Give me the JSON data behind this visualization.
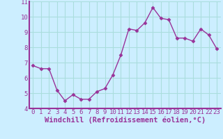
{
  "x": [
    0,
    1,
    2,
    3,
    4,
    5,
    6,
    7,
    8,
    9,
    10,
    11,
    12,
    13,
    14,
    15,
    16,
    17,
    18,
    19,
    20,
    21,
    22,
    23
  ],
  "y": [
    6.8,
    6.6,
    6.6,
    5.2,
    4.5,
    4.9,
    4.6,
    4.6,
    5.1,
    5.3,
    6.2,
    7.5,
    9.2,
    9.1,
    9.6,
    10.6,
    9.9,
    9.8,
    8.6,
    8.6,
    8.4,
    9.2,
    8.8,
    7.9
  ],
  "line_color": "#993399",
  "marker": "D",
  "marker_size": 2.5,
  "bg_color": "#cceeff",
  "grid_color": "#aadddd",
  "xlabel": "Windchill (Refroidissement éolien,°C)",
  "xlim": [
    -0.5,
    23.5
  ],
  "ylim": [
    4,
    11
  ],
  "yticks": [
    4,
    5,
    6,
    7,
    8,
    9,
    10,
    11
  ],
  "xticks": [
    0,
    1,
    2,
    3,
    4,
    5,
    6,
    7,
    8,
    9,
    10,
    11,
    12,
    13,
    14,
    15,
    16,
    17,
    18,
    19,
    20,
    21,
    22,
    23
  ],
  "label_color": "#993399",
  "tick_label_color": "#993399",
  "spine_color": "#993399",
  "font_size": 6.5,
  "linewidth": 1.0,
  "xlabel_fontsize": 7.5,
  "xlabel_fontweight": "bold"
}
